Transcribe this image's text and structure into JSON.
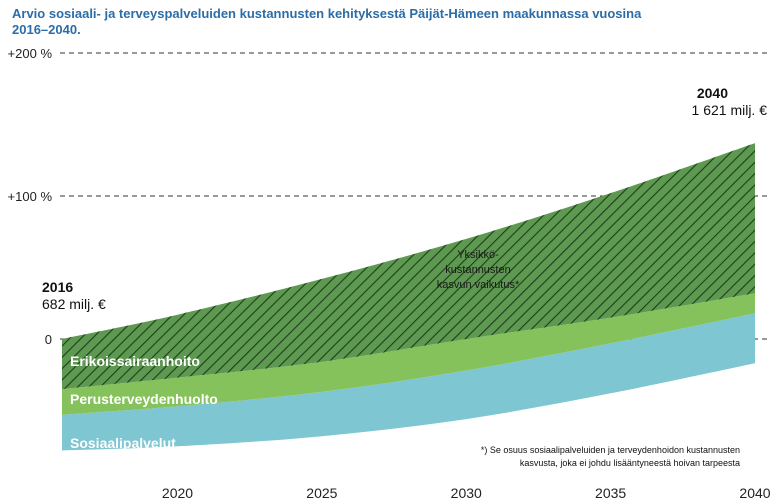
{
  "chart_data": {
    "type": "area",
    "title_lines": [
      "Arvio sosiaali- ja terveyspalveluiden kustannusten kehityksestä Päijät-Hämeen maakunnassa vuosina",
      "2016–2040."
    ],
    "x": [
      2016,
      2020,
      2025,
      2030,
      2035,
      2040
    ],
    "xlim": [
      2016,
      2040
    ],
    "x_ticks": [
      "2020",
      "2025",
      "2030",
      "2035",
      "2040"
    ],
    "ylim": [
      -80,
      200
    ],
    "y_ticks": [
      {
        "value": 200,
        "label": "+200 %"
      },
      {
        "value": 100,
        "label": "+100 %"
      },
      {
        "value": 0,
        "label": "0"
      }
    ],
    "unit": "%",
    "grid": "dashed horizontal lines at labelled y ticks",
    "stack_bottom": [
      -78,
      -75,
      -68,
      -56,
      -38,
      -17
    ],
    "series": [
      {
        "name": "Sosiaalipalvelut",
        "color": "#7ec6d2",
        "top": [
          -53,
          -47,
          -37,
          -22,
          -3,
          18
        ]
      },
      {
        "name": "Perusterveydenhuolto",
        "color": "#86c25b",
        "top": [
          -35,
          -27,
          -16,
          0,
          15,
          32
        ]
      },
      {
        "name": "Erikoissairaanhoito",
        "color": "#5d9950",
        "top": [
          -35,
          -27,
          -16,
          0,
          15,
          32
        ]
      },
      {
        "name": "",
        "color": "#4e8a42",
        "hatched": true,
        "top": [
          0,
          17,
          42,
          70,
          102,
          137
        ]
      }
    ],
    "annotations": {
      "start_year": "2016",
      "start_value": "682 milj. €",
      "end_year": "2040",
      "end_value": "1 621 milj. €",
      "unit_cost_label": [
        "Yksikkö-",
        "kustannusten",
        "kasvun vaikutus*"
      ],
      "footnote": [
        "*) Se osuus sosiaalipalveluiden ja terveydenhoidon kustannusten",
        "kasvusta, joka ei johdu lisääntyneestä hoivan tarpeesta"
      ]
    }
  }
}
